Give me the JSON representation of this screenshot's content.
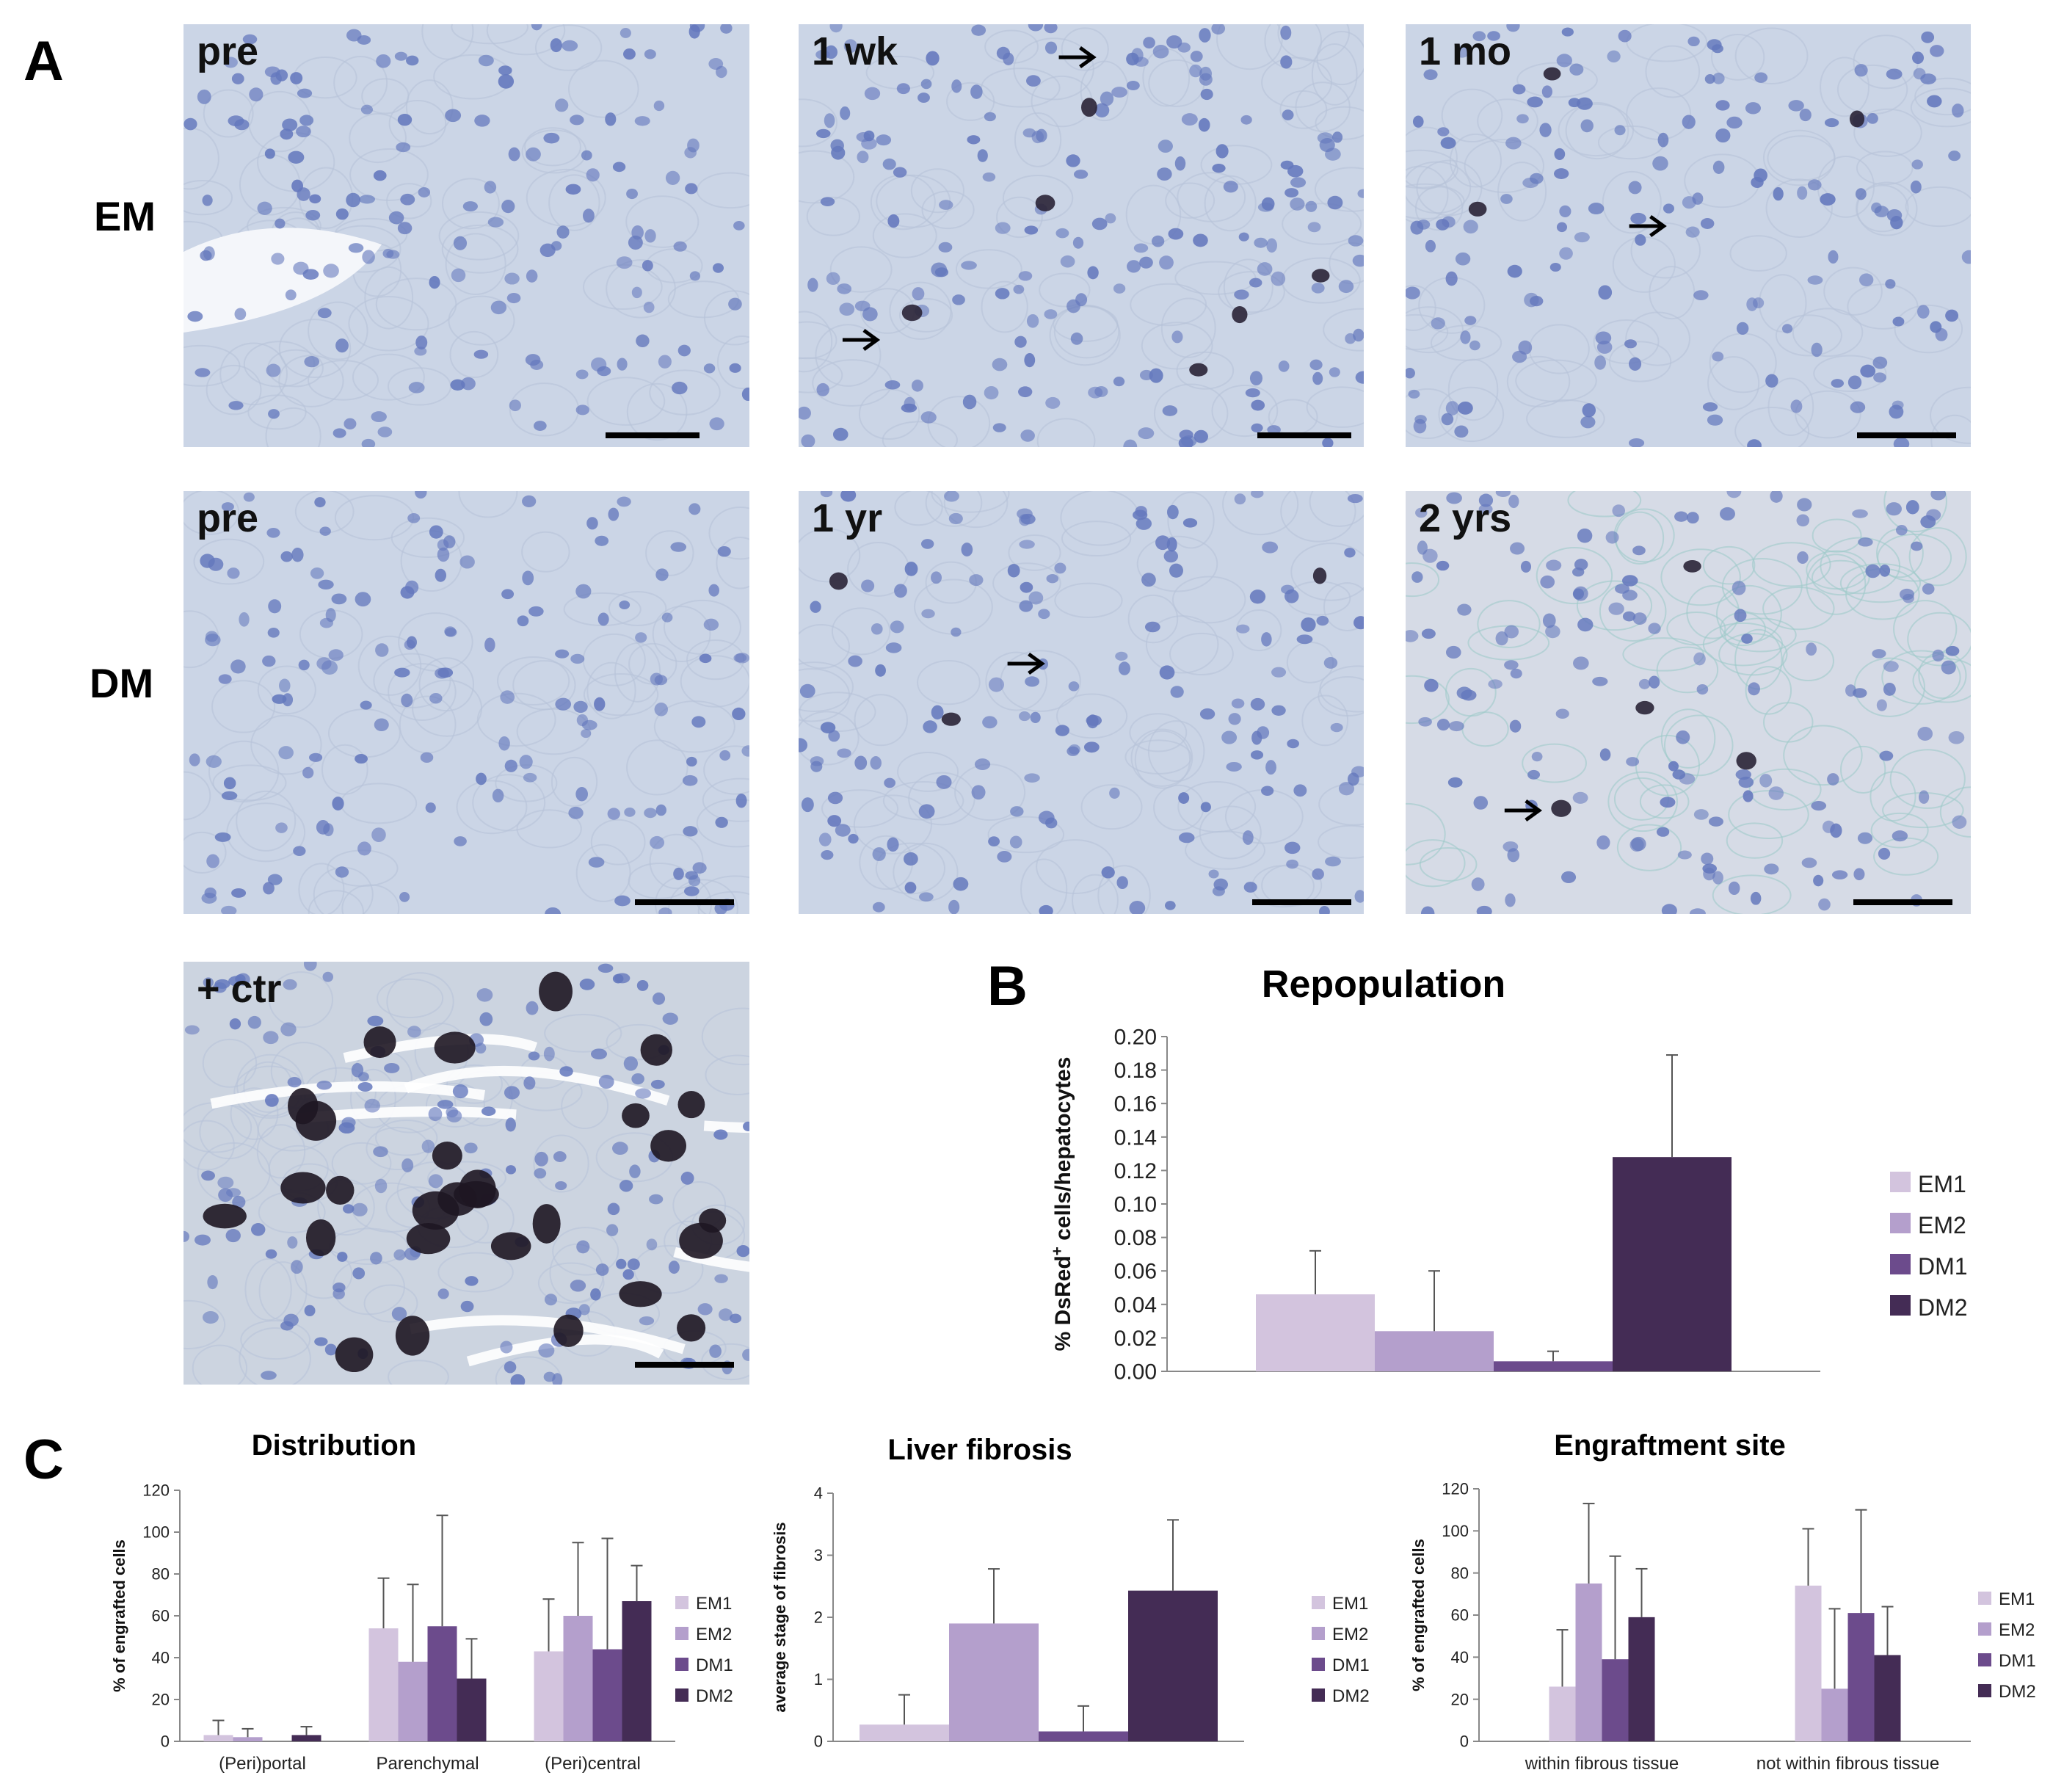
{
  "panel_letters": {
    "a": "A",
    "b": "B",
    "c": "C"
  },
  "row_labels": {
    "em": "EM",
    "dm": "DM"
  },
  "micrographs": [
    {
      "label": "pre",
      "style": "plain",
      "arrows": 0,
      "dark_cells": 0
    },
    {
      "label": "1 wk",
      "style": "dense",
      "arrows": 2,
      "dark_cells": 6
    },
    {
      "label": "1 mo",
      "style": "grainy",
      "arrows": 1,
      "dark_cells": 3
    },
    {
      "label": "pre",
      "style": "plain",
      "arrows": 0,
      "dark_cells": 0
    },
    {
      "label": "1 yr",
      "style": "plain",
      "arrows": 1,
      "dark_cells": 3
    },
    {
      "label": "2 yrs",
      "style": "fibrous",
      "arrows": 1,
      "dark_cells": 4
    },
    {
      "label": "+ ctr",
      "style": "control",
      "arrows": 0,
      "dark_cells": 30
    }
  ],
  "colors": {
    "EM1": "#d3c4de",
    "EM2": "#b49fcc",
    "DM1": "#6c4b8c",
    "DM2": "#442c55",
    "axis": "#888888",
    "tissue_bg": "#cdd6e4",
    "nuclei": "#5a6fb8"
  },
  "legend": [
    "EM1",
    "EM2",
    "DM1",
    "DM2"
  ],
  "chart_data": [
    {
      "id": "B",
      "type": "bar",
      "title": "Repopulation",
      "ylabel": "% DsRed+ cells/hepatocytes",
      "ylabel_main": "% DsRed",
      "ylabel_sup": "+",
      "ylabel_rest": " cells/hepatocytes",
      "ylim": [
        0,
        0.2
      ],
      "yticks": [
        "0.00",
        "0.02",
        "0.04",
        "0.06",
        "0.08",
        "0.10",
        "0.12",
        "0.14",
        "0.16",
        "0.18",
        "0.20"
      ],
      "series": [
        {
          "name": "EM1",
          "values": [
            0.046
          ],
          "errors": [
            0.026
          ]
        },
        {
          "name": "EM2",
          "values": [
            0.024
          ],
          "errors": [
            0.036
          ]
        },
        {
          "name": "DM1",
          "values": [
            0.006
          ],
          "errors": [
            0.006
          ]
        },
        {
          "name": "DM2",
          "values": [
            0.128
          ],
          "errors": [
            0.061
          ]
        }
      ]
    },
    {
      "id": "C1",
      "type": "bar",
      "title": "Distribution",
      "ylabel": "% of engrafted cells",
      "ylim": [
        0,
        120
      ],
      "yticks": [
        "0",
        "20",
        "40",
        "60",
        "80",
        "100",
        "120"
      ],
      "categories": [
        "(Peri)portal",
        "Parenchymal",
        "(Peri)central"
      ],
      "series": [
        {
          "name": "EM1",
          "values": [
            3,
            54,
            43
          ],
          "errors": [
            7,
            24,
            25
          ]
        },
        {
          "name": "EM2",
          "values": [
            2,
            38,
            60
          ],
          "errors": [
            4,
            37,
            35
          ]
        },
        {
          "name": "DM1",
          "values": [
            0,
            55,
            44
          ],
          "errors": [
            0,
            53,
            53
          ]
        },
        {
          "name": "DM2",
          "values": [
            3,
            30,
            67
          ],
          "errors": [
            4,
            19,
            17
          ]
        }
      ]
    },
    {
      "id": "C2",
      "type": "bar",
      "title": "Liver fibrosis",
      "ylabel": "average  stage of fibrosis",
      "ylim": [
        0,
        4
      ],
      "yticks": [
        "0",
        "1",
        "2",
        "3",
        "4"
      ],
      "series": [
        {
          "name": "EM1",
          "values": [
            0.27
          ],
          "errors": [
            0.48
          ]
        },
        {
          "name": "EM2",
          "values": [
            1.9
          ],
          "errors": [
            0.88
          ]
        },
        {
          "name": "DM1",
          "values": [
            0.16
          ],
          "errors": [
            0.41
          ]
        },
        {
          "name": "DM2",
          "values": [
            2.43
          ],
          "errors": [
            1.14
          ]
        }
      ]
    },
    {
      "id": "C3",
      "type": "bar",
      "title": "Engraftment site",
      "ylabel": "% of engrafted cells",
      "ylim": [
        0,
        120
      ],
      "yticks": [
        "0",
        "20",
        "40",
        "60",
        "80",
        "100",
        "120"
      ],
      "categories": [
        "within fibrous tissue",
        "not within fibrous tissue"
      ],
      "series": [
        {
          "name": "EM1",
          "values": [
            26,
            74
          ],
          "errors": [
            27,
            27
          ]
        },
        {
          "name": "EM2",
          "values": [
            75,
            25
          ],
          "errors": [
            38,
            38
          ]
        },
        {
          "name": "DM1",
          "values": [
            39,
            61
          ],
          "errors": [
            49,
            49
          ]
        },
        {
          "name": "DM2",
          "values": [
            59,
            41
          ],
          "errors": [
            23,
            23
          ]
        }
      ]
    }
  ]
}
